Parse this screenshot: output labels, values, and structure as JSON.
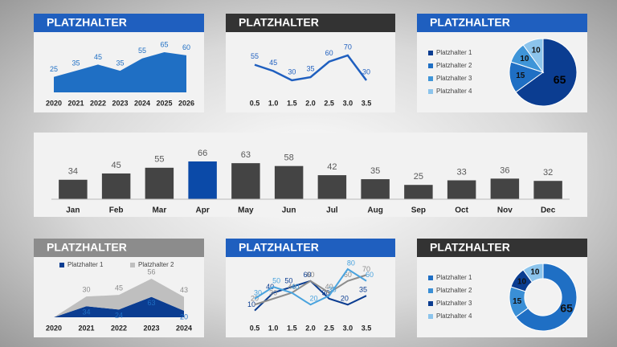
{
  "chart_data": [
    {
      "type": "area",
      "title": "PLATZHALTER",
      "header_color": "#1f5fbf",
      "color": "#1f6fc4",
      "categories": [
        "2020",
        "2021",
        "2022",
        "2023",
        "2024",
        "2025",
        "2026"
      ],
      "values": [
        25,
        35,
        45,
        35,
        55,
        65,
        60
      ]
    },
    {
      "type": "line",
      "title": "PLATZHALTER",
      "header_color": "#333333",
      "color": "#1f5fbf",
      "categories": [
        "0.5",
        "1.0",
        "1.5",
        "2.0",
        "2.5",
        "3.0",
        "3.5"
      ],
      "values": [
        55,
        45,
        30,
        35,
        60,
        70,
        30
      ]
    },
    {
      "type": "pie",
      "title": "PLATZHALTER",
      "header_color": "#1f5fbf",
      "categories": [
        "Platzhalter 1",
        "Platzhalter 2",
        "Platzhalter 3",
        "Platzhalter 4"
      ],
      "values": [
        65,
        15,
        10,
        10
      ],
      "colors": [
        "#0b3d91",
        "#1f6fc4",
        "#3f95d8",
        "#8cc4ec"
      ]
    },
    {
      "type": "bar",
      "categories": [
        "Jan",
        "Feb",
        "Mar",
        "Apr",
        "May",
        "Jun",
        "Jul",
        "Aug",
        "Sep",
        "Oct",
        "Nov",
        "Dec"
      ],
      "values": [
        34,
        45,
        55,
        66,
        63,
        58,
        42,
        35,
        25,
        33,
        36,
        32
      ],
      "colors": [
        "#444444",
        "#444444",
        "#444444",
        "#0b4aa8",
        "#444444",
        "#444444",
        "#444444",
        "#444444",
        "#444444",
        "#444444",
        "#444444",
        "#444444"
      ]
    },
    {
      "type": "stacked_area",
      "title": "PLATZHALTER",
      "header_color": "#8c8c8c",
      "categories": [
        "2020",
        "2021",
        "2022",
        "2023",
        "2024"
      ],
      "series": [
        {
          "name": "Platzhalter 1",
          "color": "#0b3d91",
          "values": [
            0,
            34,
            24,
            63,
            20
          ]
        },
        {
          "name": "Platzhalter 2",
          "color": "#bfbfbf",
          "values": [
            0,
            30,
            45,
            56,
            43
          ]
        }
      ]
    },
    {
      "type": "multiline",
      "title": "PLATZHALTER",
      "header_color": "#1f5fbf",
      "categories": [
        "0.5",
        "1.0",
        "1.5",
        "2.0",
        "2.5",
        "3.0",
        "3.5"
      ],
      "series": [
        {
          "color": "#0b3d91",
          "values": [
            10,
            40,
            50,
            60,
            30,
            20,
            35
          ]
        },
        {
          "color": "#8c8c8c",
          "values": [
            20,
            30,
            40,
            60,
            40,
            60,
            70
          ]
        },
        {
          "color": "#4aa3de",
          "values": [
            30,
            50,
            40,
            20,
            35,
            80,
            60
          ]
        }
      ]
    },
    {
      "type": "donut",
      "title": "PLATZHALTER",
      "header_color": "#333333",
      "categories": [
        "Platzhalter 1",
        "Platzhalter 2",
        "Platzhalter 3",
        "Platzhalter 4"
      ],
      "values": [
        65,
        15,
        10,
        10
      ],
      "colors": [
        "#1f6fc4",
        "#3a8fd6",
        "#0b3d91",
        "#8cc4ec"
      ]
    }
  ]
}
